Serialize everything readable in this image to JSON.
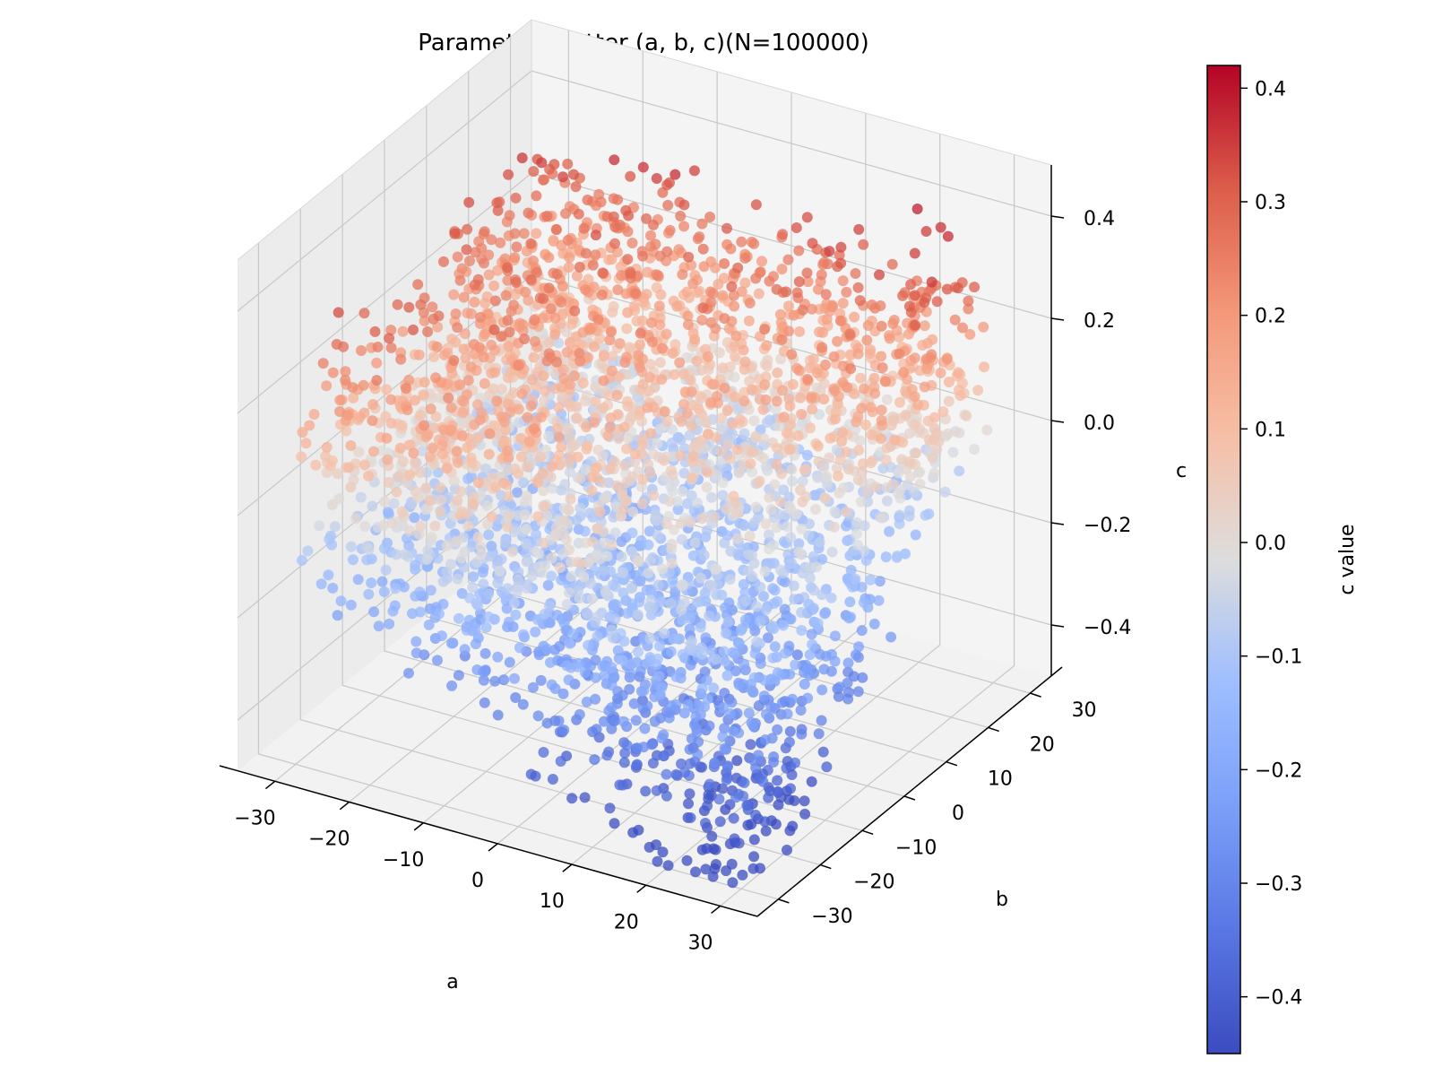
{
  "chart_data": {
    "type": "scatter",
    "projection": "3d",
    "title": "Parameter scatter (a, b, c)(N=100000)",
    "xlabel": "a",
    "ylabel": "b",
    "zlabel": "c",
    "colorbar_label": "c value",
    "colormap": "coolwarm",
    "color_low": "#3b4cc0",
    "color_mid": "#dddddd",
    "color_high": "#b40426",
    "xlim": [
      -35,
      35
    ],
    "ylim": [
      -35,
      35
    ],
    "zlim": [
      -0.5,
      0.5
    ],
    "x_ticks": [
      -30,
      -20,
      -10,
      0,
      10,
      20,
      30
    ],
    "y_ticks": [
      -30,
      -20,
      -10,
      0,
      10,
      20,
      30
    ],
    "z_ticks": [
      -0.4,
      -0.2,
      0.0,
      0.2,
      0.4
    ],
    "x_tick_labels": [
      "−30",
      "−20",
      "−10",
      "0",
      "10",
      "20",
      "30"
    ],
    "y_tick_labels": [
      "−30",
      "−20",
      "−10",
      "0",
      "10",
      "20",
      "30"
    ],
    "z_tick_labels": [
      "−0.4",
      "−0.2",
      "0.0",
      "0.2",
      "0.4"
    ],
    "colorbar_range": [
      -0.45,
      0.42
    ],
    "colorbar_ticks": [
      -0.4,
      -0.3,
      -0.2,
      -0.1,
      0.0,
      0.1,
      0.2,
      0.3,
      0.4
    ],
    "colorbar_tick_labels": [
      "−0.4",
      "−0.3",
      "−0.2",
      "−0.1",
      "0.0",
      "0.1",
      "0.2",
      "0.3",
      "0.4"
    ],
    "grid": true,
    "n_points": 100000,
    "surface_trend": [
      {
        "a": -30,
        "b": -30,
        "c": 0.05
      },
      {
        "a": -30,
        "b": 30,
        "c": 0.12
      },
      {
        "a": 0,
        "b": 0,
        "c": 0.0
      },
      {
        "a": 30,
        "b": -30,
        "c": -0.3
      },
      {
        "a": 30,
        "b": 30,
        "c": 0.05
      }
    ]
  }
}
